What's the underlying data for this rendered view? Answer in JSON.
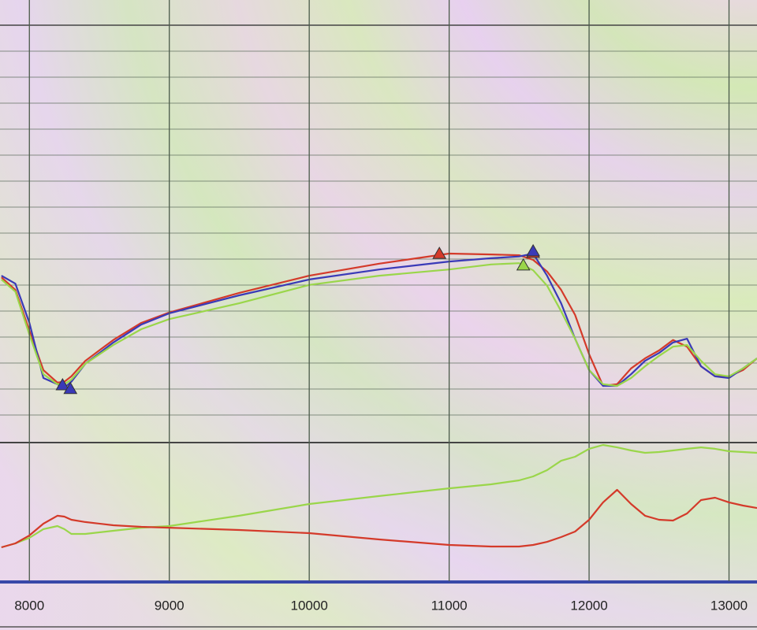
{
  "chart_data": [
    {
      "type": "line",
      "xlim": [
        7790,
        13200
      ],
      "ylim": [
        0,
        100
      ],
      "grid": true,
      "x": [
        7800,
        7900,
        8000,
        8100,
        8200,
        8250,
        8300,
        8400,
        8600,
        8800,
        9000,
        9500,
        10000,
        10500,
        11000,
        11300,
        11500,
        11600,
        11700,
        11800,
        11900,
        12000,
        12100,
        12200,
        12300,
        12400,
        12500,
        12600,
        12700,
        12800,
        12900,
        13000,
        13100,
        13200
      ],
      "series": [
        {
          "color": "#d43a2a",
          "values": [
            39.2,
            36.2,
            26.4,
            17.0,
            14.0,
            14.2,
            15.5,
            19.2,
            24.2,
            28.3,
            30.8,
            35.5,
            39.6,
            42.5,
            44.9,
            44.7,
            44.5,
            43.4,
            40.6,
            36.2,
            30.2,
            20.8,
            13.2,
            13.6,
            17.4,
            19.8,
            21.7,
            24.2,
            22.6,
            17.9,
            15.5,
            15.5,
            17.0,
            19.8
          ]
        },
        {
          "color": "#3a3ab8",
          "values": [
            39.6,
            37.7,
            28.3,
            15.1,
            13.6,
            12.8,
            14.2,
            18.5,
            23.6,
            27.9,
            30.6,
            34.9,
            38.7,
            41.1,
            43.0,
            43.8,
            44.2,
            44.9,
            39.6,
            33.0,
            24.5,
            17.0,
            13.2,
            13.2,
            16.0,
            19.2,
            21.1,
            23.6,
            24.5,
            17.9,
            15.5,
            15.1,
            17.4,
            19.8
          ]
        },
        {
          "color": "#9ad64a",
          "values": [
            38.7,
            35.8,
            25.5,
            16.0,
            13.6,
            13.6,
            14.7,
            18.5,
            23.0,
            26.8,
            29.2,
            33.0,
            37.4,
            39.6,
            41.1,
            42.3,
            42.6,
            40.9,
            37.2,
            31.1,
            24.5,
            17.0,
            13.6,
            13.2,
            15.1,
            17.9,
            20.4,
            22.6,
            23.0,
            19.2,
            16.0,
            15.5,
            17.4,
            19.8
          ]
        }
      ],
      "markers": [
        {
          "color": "#d43a2a",
          "x": [
            10930,
            11600
          ],
          "values": [
            44.7,
            44.9
          ]
        },
        {
          "color": "#3a3ab8",
          "x": [
            8237,
            8293,
            11600
          ],
          "values": [
            13.2,
            12.3,
            45.3
          ]
        },
        {
          "color": "#9ad64a",
          "x": [
            11530
          ],
          "values": [
            41.9
          ]
        }
      ]
    },
    {
      "type": "line",
      "xlim": [
        7790,
        13200
      ],
      "ylim": [
        0,
        100
      ],
      "xticks": [
        8000,
        9000,
        10000,
        11000,
        12000,
        13000
      ],
      "x": [
        7800,
        7900,
        8000,
        8100,
        8200,
        8250,
        8300,
        8400,
        8600,
        8800,
        9000,
        9500,
        10000,
        10500,
        11000,
        11300,
        11500,
        11600,
        11700,
        11800,
        11900,
        12000,
        12100,
        12200,
        12300,
        12400,
        12500,
        12600,
        12700,
        12800,
        12900,
        13000,
        13100,
        13200
      ],
      "series": [
        {
          "color": "#9ad64a",
          "values": [
            23.5,
            26.5,
            30.6,
            37.1,
            39.4,
            37.1,
            33.5,
            33.5,
            35.9,
            38.2,
            39.4,
            47.1,
            55.9,
            61.8,
            67.6,
            70.6,
            73.5,
            76.5,
            81.2,
            88.2,
            91.2,
            97.1,
            100,
            98.2,
            95.9,
            94.1,
            94.7,
            95.9,
            97.1,
            98.2,
            97.1,
            95.3,
            94.7,
            94.1
          ]
        },
        {
          "color": "#d43a2a",
          "values": [
            23.5,
            26.5,
            32.4,
            41.2,
            47.1,
            46.5,
            44.1,
            42.4,
            40.0,
            38.8,
            38.2,
            36.5,
            34.1,
            29.4,
            25.3,
            24.1,
            24.1,
            25.3,
            27.6,
            31.2,
            35.3,
            44.1,
            57.1,
            66.5,
            55.9,
            47.1,
            44.1,
            43.5,
            48.8,
            58.8,
            60.6,
            57.1,
            54.7,
            52.9
          ]
        }
      ]
    }
  ]
}
